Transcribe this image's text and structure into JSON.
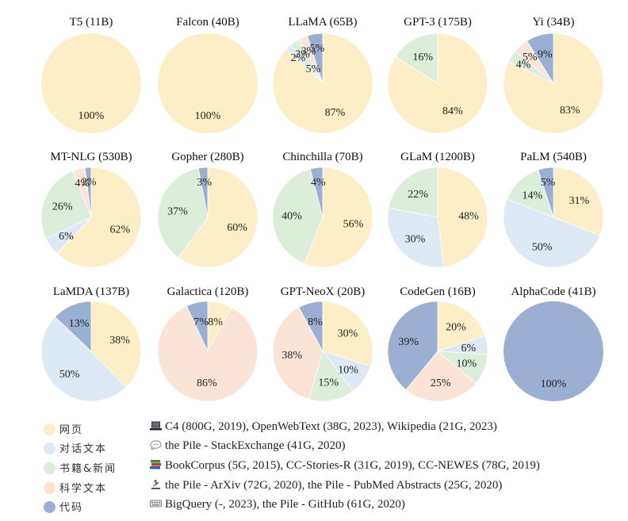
{
  "colors": {
    "web": "#fdeec8",
    "dialogue": "#dde9f5",
    "books": "#dcedd9",
    "science": "#fbe3d6",
    "code": "#9aafd2"
  },
  "chart_data": [
    {
      "type": "pie",
      "title": "T5 (11B)",
      "slices": [
        {
          "category": "web",
          "value": 100,
          "label": "100%"
        }
      ]
    },
    {
      "type": "pie",
      "title": "Falcon (40B)",
      "slices": [
        {
          "category": "web",
          "value": 100,
          "label": "100%"
        }
      ]
    },
    {
      "type": "pie",
      "title": "LLaMA (65B)",
      "slices": [
        {
          "category": "web",
          "value": 87,
          "label": "87%"
        },
        {
          "category": "dialogue",
          "value": 2,
          "label": "2%"
        },
        {
          "category": "books",
          "value": 3,
          "label": "3%"
        },
        {
          "category": "science",
          "value": 3,
          "label": "3%"
        },
        {
          "category": "code",
          "value": 5,
          "label": "5%"
        }
      ],
      "extra_labels": [
        "5%"
      ]
    },
    {
      "type": "pie",
      "title": "GPT-3 (175B)",
      "slices": [
        {
          "category": "web",
          "value": 84,
          "label": "84%"
        },
        {
          "category": "books",
          "value": 16,
          "label": "16%"
        }
      ]
    },
    {
      "type": "pie",
      "title": "Yi (34B)",
      "slices": [
        {
          "category": "web",
          "value": 83,
          "label": "83%"
        },
        {
          "category": "books",
          "value": 4,
          "label": "4%"
        },
        {
          "category": "science",
          "value": 5,
          "label": "5%"
        },
        {
          "category": "code",
          "value": 9,
          "label": "9%"
        }
      ]
    },
    {
      "type": "pie",
      "title": "MT-NLG (530B)",
      "slices": [
        {
          "category": "web",
          "value": 62,
          "label": "62%"
        },
        {
          "category": "dialogue",
          "value": 6,
          "label": "6%"
        },
        {
          "category": "books",
          "value": 26,
          "label": "26%"
        },
        {
          "category": "science",
          "value": 4,
          "label": "4%"
        },
        {
          "category": "code",
          "value": 2,
          "label": "2%"
        }
      ]
    },
    {
      "type": "pie",
      "title": "Gopher (280B)",
      "slices": [
        {
          "category": "web",
          "value": 60,
          "label": "60%"
        },
        {
          "category": "books",
          "value": 37,
          "label": "37%"
        },
        {
          "category": "code",
          "value": 3,
          "label": "3%"
        }
      ]
    },
    {
      "type": "pie",
      "title": "Chinchilla (70B)",
      "slices": [
        {
          "category": "web",
          "value": 56,
          "label": "56%"
        },
        {
          "category": "books",
          "value": 40,
          "label": "40%"
        },
        {
          "category": "code",
          "value": 4,
          "label": "4%"
        }
      ]
    },
    {
      "type": "pie",
      "title": "GLaM (1200B)",
      "slices": [
        {
          "category": "web",
          "value": 48,
          "label": "48%"
        },
        {
          "category": "dialogue",
          "value": 30,
          "label": "30%"
        },
        {
          "category": "books",
          "value": 22,
          "label": "22%"
        }
      ]
    },
    {
      "type": "pie",
      "title": "PaLM (540B)",
      "slices": [
        {
          "category": "web",
          "value": 31,
          "label": "31%"
        },
        {
          "category": "dialogue",
          "value": 50,
          "label": "50%"
        },
        {
          "category": "books",
          "value": 14,
          "label": "14%"
        },
        {
          "category": "code",
          "value": 5,
          "label": "5%"
        }
      ]
    },
    {
      "type": "pie",
      "title": "LaMDA (137B)",
      "slices": [
        {
          "category": "web",
          "value": 38,
          "label": "38%"
        },
        {
          "category": "dialogue",
          "value": 50,
          "label": "50%"
        },
        {
          "category": "code",
          "value": 13,
          "label": "13%"
        }
      ]
    },
    {
      "type": "pie",
      "title": "Galactica (120B)",
      "slices": [
        {
          "category": "web",
          "value": 8,
          "label": "8%"
        },
        {
          "category": "science",
          "value": 86,
          "label": "86%"
        },
        {
          "category": "code",
          "value": 7,
          "label": "7%"
        }
      ]
    },
    {
      "type": "pie",
      "title": "GPT-NeoX (20B)",
      "slices": [
        {
          "category": "web",
          "value": 30,
          "label": "30%"
        },
        {
          "category": "dialogue",
          "value": 10,
          "label": "10%"
        },
        {
          "category": "books",
          "value": 15,
          "label": "15%"
        },
        {
          "category": "science",
          "value": 38,
          "label": "38%"
        },
        {
          "category": "code",
          "value": 8,
          "label": "8%"
        }
      ]
    },
    {
      "type": "pie",
      "title": "CodeGen (16B)",
      "slices": [
        {
          "category": "web",
          "value": 20,
          "label": "20%"
        },
        {
          "category": "dialogue",
          "value": 6,
          "label": "6%"
        },
        {
          "category": "books",
          "value": 10,
          "label": "10%"
        },
        {
          "category": "science",
          "value": 25,
          "label": "25%"
        },
        {
          "category": "code",
          "value": 39,
          "label": "39%"
        }
      ]
    },
    {
      "type": "pie",
      "title": "AlphaCode (41B)",
      "slices": [
        {
          "category": "code",
          "value": 100,
          "label": "100%"
        }
      ]
    }
  ],
  "legend": [
    {
      "category": "web",
      "name": "网页",
      "icon": "laptop-icon",
      "sources": "C4 (800G, 2019), OpenWebText (38G, 2023), Wikipedia (21G, 2023)"
    },
    {
      "category": "dialogue",
      "name": "对话文本",
      "icon": "speech-bubble-icon",
      "sources": "the Pile - StackExchange (41G, 2020)"
    },
    {
      "category": "books",
      "name": "书籍&新闻",
      "icon": "books-icon",
      "sources": "BookCorpus (5G, 2015), CC-Stories-R (31G, 2019), CC-NEWES (78G, 2019)"
    },
    {
      "category": "science",
      "name": "科学文本",
      "icon": "microscope-icon",
      "sources": "the Pile - ArXiv (72G, 2020), the Pile - PubMed Abstracts (25G, 2020)"
    },
    {
      "category": "code",
      "name": "代码",
      "icon": "keyboard-icon",
      "sources": "BigQuery (-, 2023), the Pile - GitHub (61G, 2020)"
    }
  ]
}
